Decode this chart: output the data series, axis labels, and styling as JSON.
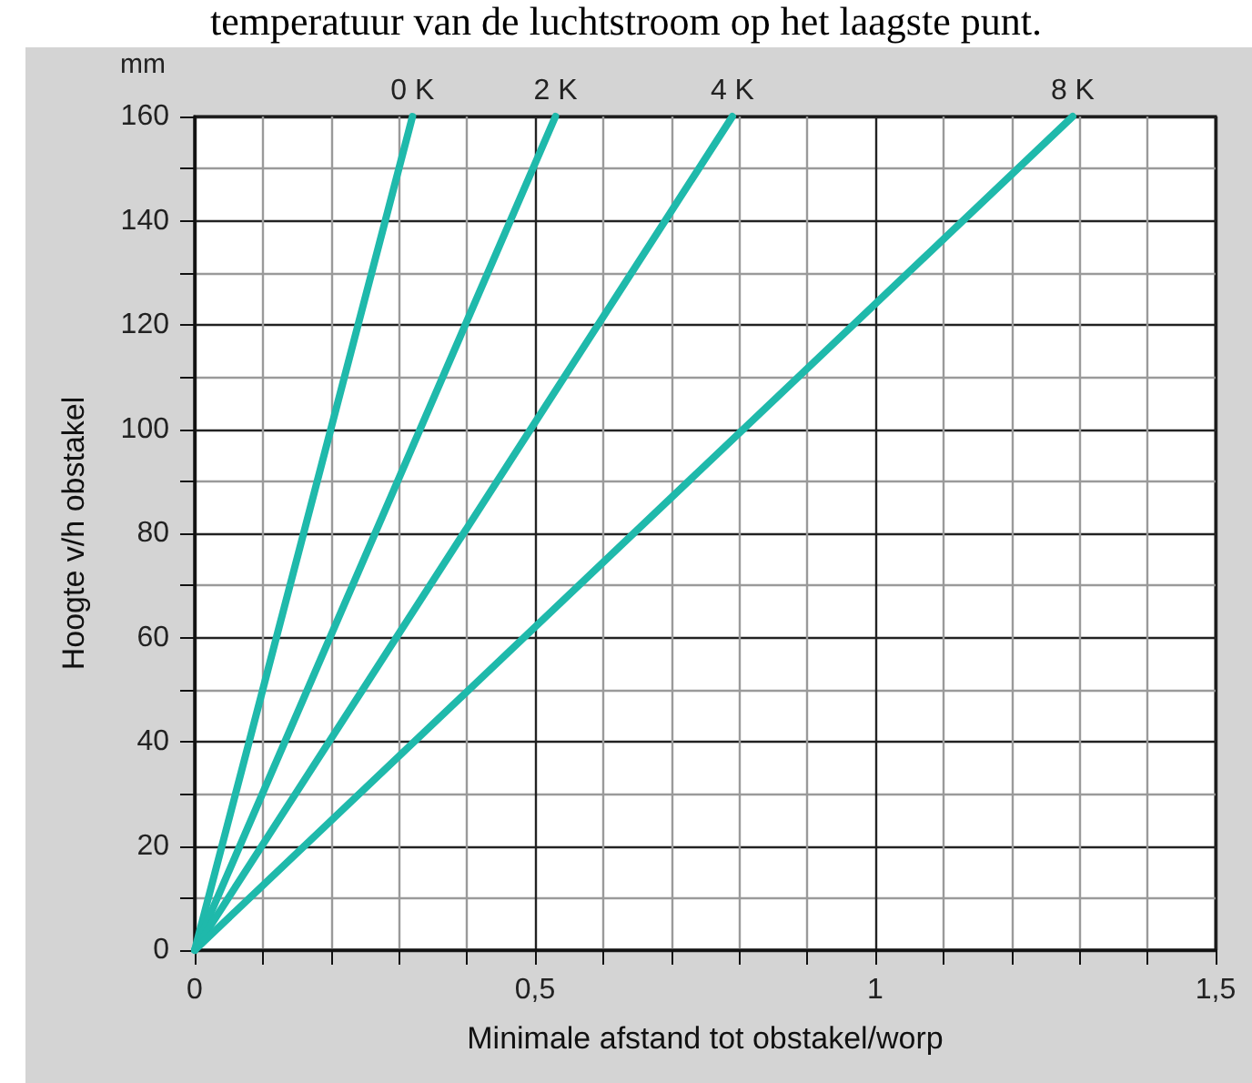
{
  "chart_data": {
    "type": "line",
    "title": "temperatuur van de luchtstroom op het laagste punt.",
    "xlabel": "Minimale afstand tot obstakel/worp",
    "ylabel": "Hoogte v/h obstakel",
    "annotations": [
      "mm"
    ],
    "series": [
      {
        "name": "0 K",
        "color": "#1fb9ab",
        "x": [
          0,
          0.32
        ],
        "values": [
          0,
          160
        ]
      },
      {
        "name": "2 K",
        "color": "#1fb9ab",
        "x": [
          0,
          0.53
        ],
        "values": [
          0,
          160
        ]
      },
      {
        "name": "4 K",
        "color": "#1fb9ab",
        "x": [
          0,
          0.79
        ],
        "values": [
          0,
          160
        ]
      },
      {
        "name": "8 K",
        "color": "#1fb9ab",
        "x": [
          0,
          1.29
        ],
        "values": [
          0,
          160
        ]
      }
    ],
    "xlim": [
      0,
      1.5
    ],
    "ylim": [
      0,
      160
    ],
    "xticks": [
      0,
      {
        "value": 0.1,
        "label": null
      },
      {
        "value": 0.2,
        "label": null
      },
      {
        "value": 0.3,
        "label": null
      },
      {
        "value": 0.4,
        "label": null
      },
      {
        "value": 0.5,
        "label": "0,5"
      },
      {
        "value": 0.6,
        "label": null
      },
      {
        "value": 0.7,
        "label": null
      },
      {
        "value": 0.8,
        "label": null
      },
      {
        "value": 0.9,
        "label": null
      },
      1,
      {
        "value": 1.1,
        "label": null
      },
      {
        "value": 1.2,
        "label": null
      },
      {
        "value": 1.3,
        "label": null
      },
      {
        "value": 1.4,
        "label": null
      },
      {
        "value": 1.5,
        "label": "1,5"
      }
    ],
    "yticks": [
      0,
      {
        "value": 10,
        "label": null
      },
      20,
      {
        "value": 30,
        "label": null
      },
      40,
      {
        "value": 50,
        "label": null
      },
      60,
      {
        "value": 70,
        "label": null
      },
      80,
      {
        "value": 90,
        "label": null
      },
      100,
      {
        "value": 110,
        "label": null
      },
      120,
      {
        "value": 130,
        "label": null
      },
      140,
      {
        "value": 150,
        "label": null
      },
      160
    ],
    "grid": true,
    "legend": false,
    "marker": "none",
    "line_style": "solid"
  }
}
